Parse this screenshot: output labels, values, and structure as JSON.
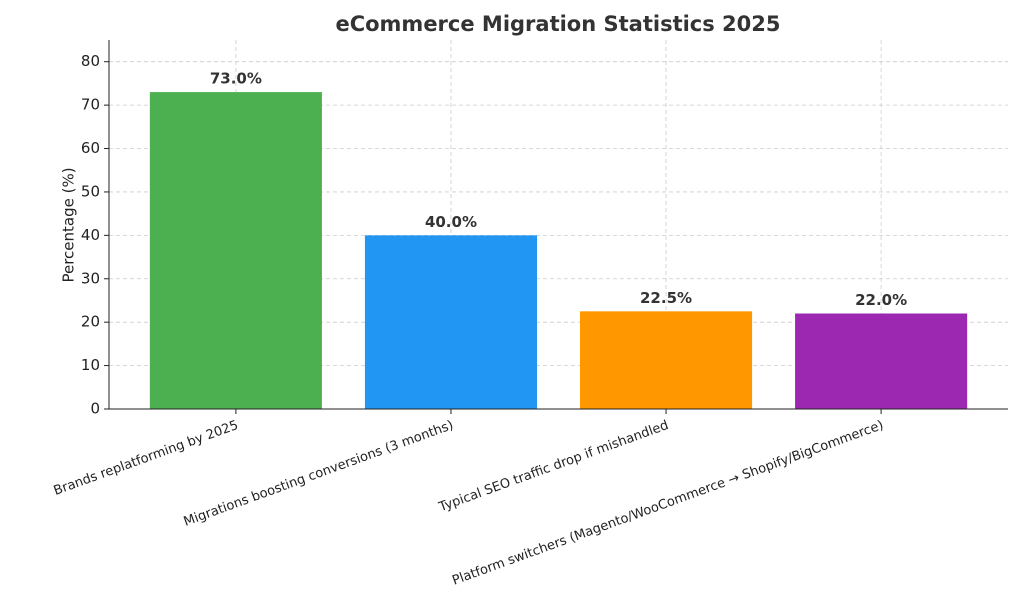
{
  "chart_data": {
    "type": "bar",
    "title": "eCommerce Migration Statistics 2025",
    "y_label": "Percentage (%)",
    "categories": [
      "Brands replatforming by 2025",
      "Migrations boosting conversions (3 months)",
      "Typical SEO traffic drop if mishandled",
      "Platform switchers (Magento/WooCommerce → Shopify/BigCommerce)"
    ],
    "values": [
      73.0,
      40.0,
      22.5,
      22.0
    ],
    "value_labels": [
      "73.0%",
      "40.0%",
      "22.5%",
      "22.0%"
    ],
    "colors": [
      "#4caf50",
      "#2196f3",
      "#ff9800",
      "#9c27b0"
    ],
    "ylim": [
      0,
      85
    ],
    "yticks": [
      0,
      10,
      20,
      30,
      40,
      50,
      60,
      70,
      80
    ],
    "grid": true
  }
}
